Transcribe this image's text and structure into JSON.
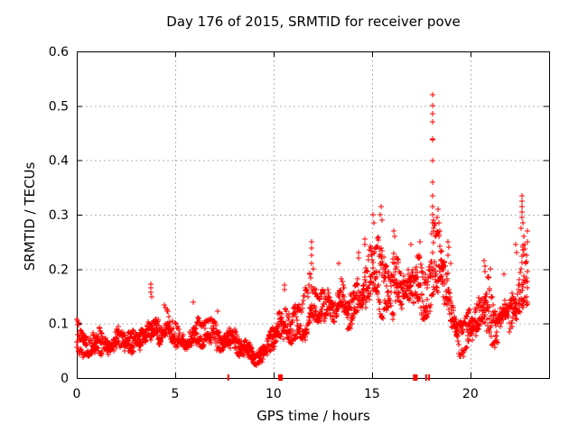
{
  "figure": {
    "title": "Day 176 of 2015, SRMTID for receiver pove",
    "xlabel": "GPS time / hours",
    "ylabel": "SRMTID / TECUs"
  },
  "chart_data": {
    "type": "scatter",
    "title": "Day 176 of 2015, SRMTID for receiver pove",
    "xlabel": "GPS time / hours",
    "ylabel": "SRMTID / TECUs",
    "xlim": [
      0,
      24
    ],
    "ylim": [
      0,
      0.6
    ],
    "xticks": [
      0,
      5,
      10,
      15,
      20
    ],
    "yticks": [
      0,
      0.1,
      0.2,
      0.3,
      0.4,
      0.5,
      0.6
    ],
    "ytick_labels": [
      "0",
      "0.1",
      "0.2",
      "0.3",
      "0.4",
      "0.5",
      "0.6"
    ],
    "grid": true,
    "grid_color": "#b3b3b3",
    "marker": {
      "shape": "plus",
      "color": "#ff0000",
      "size": 7
    },
    "seed": 176,
    "tracks": 3,
    "epochs_per_track": 730,
    "t_end": 22.95,
    "band_profile": [
      [
        0.0,
        0.055,
        0.12
      ],
      [
        0.3,
        0.03,
        0.09
      ],
      [
        0.8,
        0.025,
        0.085
      ],
      [
        1.3,
        0.035,
        0.095
      ],
      [
        1.8,
        0.03,
        0.085
      ],
      [
        2.3,
        0.04,
        0.1
      ],
      [
        2.8,
        0.03,
        0.09
      ],
      [
        3.3,
        0.04,
        0.105
      ],
      [
        3.8,
        0.045,
        0.145
      ],
      [
        4.2,
        0.04,
        0.1
      ],
      [
        4.6,
        0.045,
        0.13
      ],
      [
        5.0,
        0.04,
        0.1
      ],
      [
        5.5,
        0.035,
        0.09
      ],
      [
        6.0,
        0.045,
        0.105
      ],
      [
        6.5,
        0.05,
        0.125
      ],
      [
        7.0,
        0.04,
        0.115
      ],
      [
        7.5,
        0.035,
        0.095
      ],
      [
        8.0,
        0.035,
        0.1
      ],
      [
        8.5,
        0.02,
        0.075
      ],
      [
        9.0,
        0.012,
        0.055
      ],
      [
        9.5,
        0.02,
        0.07
      ],
      [
        9.8,
        0.035,
        0.1
      ],
      [
        10.1,
        0.05,
        0.125
      ],
      [
        10.6,
        0.055,
        0.155
      ],
      [
        11.0,
        0.06,
        0.13
      ],
      [
        11.5,
        0.065,
        0.15
      ],
      [
        11.9,
        0.07,
        0.2
      ],
      [
        12.3,
        0.07,
        0.155
      ],
      [
        12.7,
        0.085,
        0.175
      ],
      [
        13.1,
        0.07,
        0.155
      ],
      [
        13.5,
        0.08,
        0.185
      ],
      [
        13.8,
        0.05,
        0.14
      ],
      [
        14.2,
        0.085,
        0.2
      ],
      [
        14.6,
        0.1,
        0.235
      ],
      [
        15.0,
        0.11,
        0.27
      ],
      [
        15.4,
        0.115,
        0.29
      ],
      [
        15.8,
        0.1,
        0.22
      ],
      [
        16.1,
        0.1,
        0.25
      ],
      [
        16.5,
        0.09,
        0.21
      ],
      [
        17.0,
        0.09,
        0.23
      ],
      [
        17.4,
        0.085,
        0.23
      ],
      [
        17.8,
        0.08,
        0.185
      ],
      [
        18.1,
        0.1,
        0.3
      ],
      [
        18.4,
        0.11,
        0.27
      ],
      [
        18.8,
        0.09,
        0.22
      ],
      [
        19.2,
        0.05,
        0.155
      ],
      [
        19.6,
        0.035,
        0.12
      ],
      [
        20.0,
        0.04,
        0.13
      ],
      [
        20.4,
        0.05,
        0.145
      ],
      [
        20.8,
        0.04,
        0.19
      ],
      [
        21.1,
        0.05,
        0.175
      ],
      [
        21.4,
        0.055,
        0.15
      ],
      [
        21.8,
        0.075,
        0.165
      ],
      [
        22.2,
        0.09,
        0.19
      ],
      [
        22.5,
        0.1,
        0.22
      ],
      [
        22.7,
        0.12,
        0.27
      ],
      [
        22.95,
        0.1,
        0.22
      ]
    ],
    "outliers": [
      [
        3.76,
        0.172
      ],
      [
        3.78,
        0.165
      ],
      [
        3.77,
        0.157
      ],
      [
        3.79,
        0.15
      ],
      [
        4.45,
        0.135
      ],
      [
        4.5,
        0.13
      ],
      [
        5.9,
        0.14
      ],
      [
        7.15,
        0.122
      ],
      [
        10.55,
        0.17
      ],
      [
        10.57,
        0.162
      ],
      [
        11.92,
        0.25
      ],
      [
        11.93,
        0.238
      ],
      [
        11.91,
        0.225
      ],
      [
        11.95,
        0.21
      ],
      [
        12.0,
        0.2
      ],
      [
        13.3,
        0.21
      ],
      [
        14.3,
        0.23
      ],
      [
        14.32,
        0.22
      ],
      [
        14.62,
        0.255
      ],
      [
        14.65,
        0.245
      ],
      [
        15.05,
        0.3
      ],
      [
        15.08,
        0.285
      ],
      [
        15.45,
        0.315
      ],
      [
        15.43,
        0.3
      ],
      [
        15.5,
        0.29
      ],
      [
        16.12,
        0.27
      ],
      [
        16.15,
        0.26
      ],
      [
        17.0,
        0.245
      ],
      [
        17.45,
        0.25
      ],
      [
        18.08,
        0.52
      ],
      [
        18.09,
        0.5
      ],
      [
        18.08,
        0.485
      ],
      [
        18.1,
        0.47
      ],
      [
        18.07,
        0.44
      ],
      [
        18.1,
        0.437
      ],
      [
        18.09,
        0.4
      ],
      [
        18.08,
        0.36
      ],
      [
        18.1,
        0.335
      ],
      [
        18.07,
        0.315
      ],
      [
        18.09,
        0.3
      ],
      [
        18.11,
        0.29
      ],
      [
        18.06,
        0.285
      ],
      [
        18.12,
        0.275
      ],
      [
        18.05,
        0.265
      ],
      [
        18.35,
        0.31
      ],
      [
        18.32,
        0.295
      ],
      [
        18.4,
        0.285
      ],
      [
        18.45,
        0.27
      ],
      [
        18.85,
        0.25
      ],
      [
        18.9,
        0.24
      ],
      [
        18.88,
        0.225
      ],
      [
        19.0,
        0.21
      ],
      [
        20.7,
        0.215
      ],
      [
        20.75,
        0.205
      ],
      [
        20.72,
        0.195
      ],
      [
        21.0,
        0.2
      ],
      [
        21.7,
        0.19
      ],
      [
        22.3,
        0.245
      ],
      [
        22.33,
        0.23
      ],
      [
        22.62,
        0.335
      ],
      [
        22.63,
        0.325
      ],
      [
        22.61,
        0.315
      ],
      [
        22.64,
        0.305
      ],
      [
        22.62,
        0.295
      ],
      [
        22.66,
        0.285
      ],
      [
        22.6,
        0.275
      ],
      [
        22.7,
        0.26
      ],
      [
        22.75,
        0.245
      ],
      [
        22.68,
        0.235
      ],
      [
        22.9,
        0.27
      ],
      [
        22.92,
        0.25
      ]
    ],
    "baseline_marks": [
      {
        "x": 7.7,
        "w": 2
      },
      {
        "x": 10.35,
        "w": 5
      },
      {
        "x": 17.2,
        "w": 5
      },
      {
        "x": 17.75,
        "w": 2
      },
      {
        "x": 17.9,
        "w": 2
      }
    ]
  }
}
